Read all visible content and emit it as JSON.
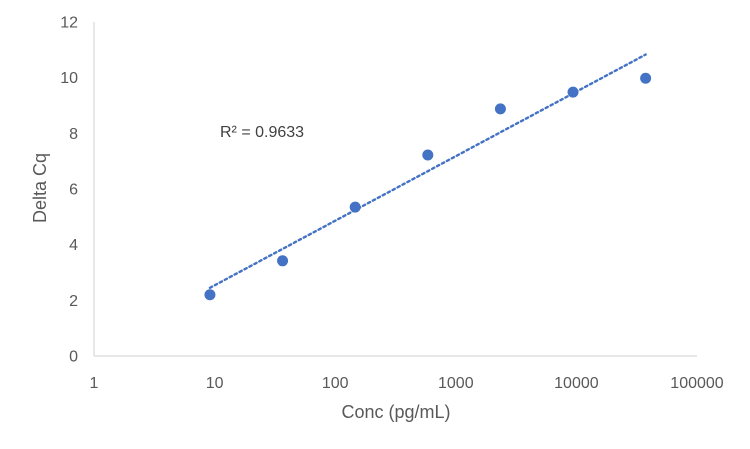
{
  "chart_data": {
    "type": "scatter",
    "title": "",
    "xlabel": "Conc (pg/mL)",
    "ylabel": "Delta Cq",
    "x_scale": "log",
    "xlim": [
      1,
      100000
    ],
    "ylim": [
      0,
      12
    ],
    "x_ticks": [
      "1",
      "10",
      "100",
      "1000",
      "10000",
      "100000"
    ],
    "y_ticks": [
      "0",
      "2",
      "4",
      "6",
      "8",
      "10",
      "12"
    ],
    "grid": false,
    "legend": "none",
    "series": [
      {
        "marker_color": "#4472C4",
        "points": [
          {
            "x": 9.15,
            "y": 2.2
          },
          {
            "x": 36.6,
            "y": 3.42
          },
          {
            "x": 146.5,
            "y": 5.35
          },
          {
            "x": 586,
            "y": 7.22
          },
          {
            "x": 2344,
            "y": 8.88
          },
          {
            "x": 9375,
            "y": 9.48
          },
          {
            "x": 37500,
            "y": 9.98
          }
        ]
      }
    ],
    "trendline": {
      "type": "logarithmic",
      "style": "dotted",
      "color": "#4472C4",
      "x_range": [
        9.15,
        37500
      ],
      "y_range": [
        2.45,
        10.83
      ]
    },
    "annotations": [
      "R² = 0.9633"
    ],
    "colors": {
      "axis": "#D9D9D9",
      "text": "#595959",
      "marker": "#4472C4"
    }
  }
}
